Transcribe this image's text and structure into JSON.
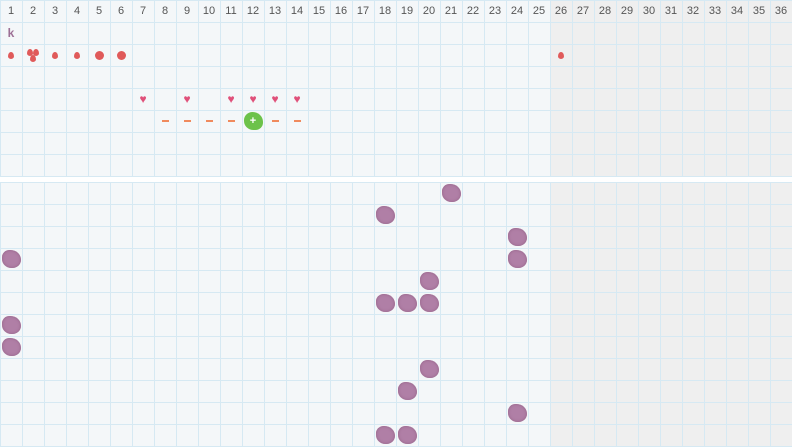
{
  "columns": [
    "1",
    "2",
    "3",
    "4",
    "5",
    "6",
    "7",
    "8",
    "9",
    "10",
    "11",
    "12",
    "13",
    "14",
    "15",
    "16",
    "17",
    "18",
    "19",
    "20",
    "21",
    "22",
    "23",
    "24",
    "25",
    "26",
    "27",
    "28",
    "29",
    "30",
    "31",
    "32",
    "33",
    "34",
    "35",
    "36"
  ],
  "shaded_from_column": 26,
  "colors": {
    "drop": "#e05a5a",
    "heart": "#e0507a",
    "dash": "#f08a5d",
    "blob": "#b07fa6",
    "green": "#6cc24a",
    "shade": "#efefef"
  },
  "top": {
    "label_row": {
      "col": 1,
      "text": "k"
    },
    "marks": [
      {
        "col": 1,
        "row": 2,
        "type": "drop"
      },
      {
        "col": 2,
        "row": 2,
        "type": "drops-triple"
      },
      {
        "col": 3,
        "row": 2,
        "type": "drop"
      },
      {
        "col": 4,
        "row": 2,
        "type": "drop"
      },
      {
        "col": 5,
        "row": 2,
        "type": "dot"
      },
      {
        "col": 6,
        "row": 2,
        "type": "dot"
      },
      {
        "col": 26,
        "row": 2,
        "type": "drop"
      },
      {
        "col": 7,
        "row": 4,
        "type": "heart"
      },
      {
        "col": 9,
        "row": 4,
        "type": "heart"
      },
      {
        "col": 11,
        "row": 4,
        "type": "heart"
      },
      {
        "col": 12,
        "row": 4,
        "type": "heart"
      },
      {
        "col": 13,
        "row": 4,
        "type": "heart"
      },
      {
        "col": 14,
        "row": 4,
        "type": "heart"
      },
      {
        "col": 8,
        "row": 5,
        "type": "dash"
      },
      {
        "col": 9,
        "row": 5,
        "type": "dash"
      },
      {
        "col": 10,
        "row": 5,
        "type": "dash"
      },
      {
        "col": 11,
        "row": 5,
        "type": "dash"
      },
      {
        "col": 12,
        "row": 5,
        "type": "green-plus"
      },
      {
        "col": 13,
        "row": 5,
        "type": "dash"
      },
      {
        "col": 14,
        "row": 5,
        "type": "dash"
      }
    ],
    "green_label": "+"
  },
  "bottom": {
    "blobs": [
      [
        21,
        0
      ],
      [
        18,
        1
      ],
      [
        24,
        2
      ],
      [
        1,
        3
      ],
      [
        24,
        3
      ],
      [
        20,
        4
      ],
      [
        18,
        5
      ],
      [
        19,
        5
      ],
      [
        20,
        5
      ],
      [
        1,
        6
      ],
      [
        1,
        7
      ],
      [
        20,
        8
      ],
      [
        19,
        9
      ],
      [
        24,
        10
      ],
      [
        18,
        11
      ],
      [
        19,
        11
      ]
    ]
  }
}
